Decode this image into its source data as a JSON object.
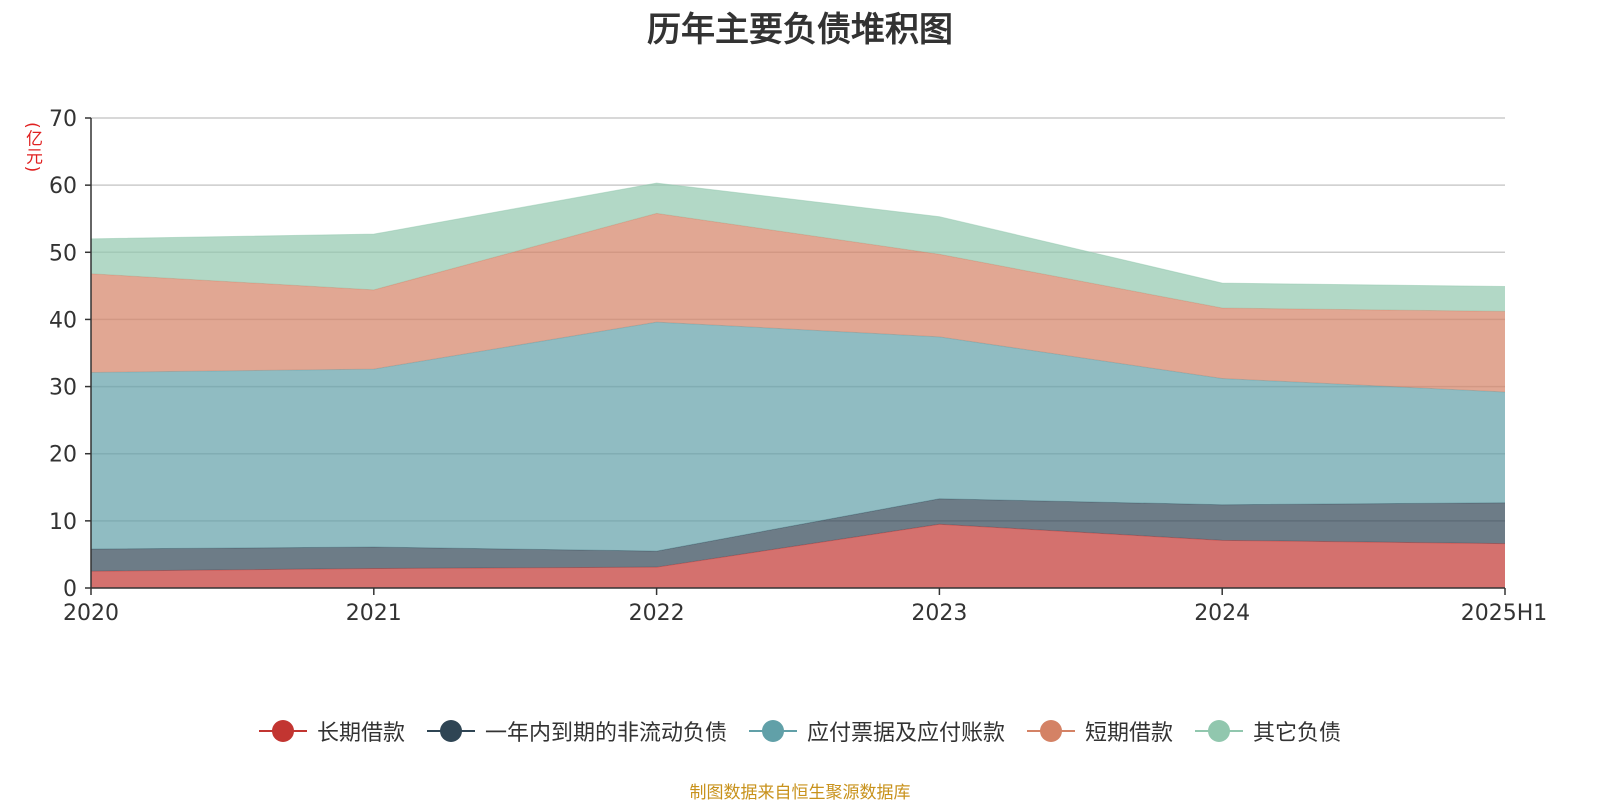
{
  "chart_data": {
    "type": "area",
    "title": "历年主要负债堆积图",
    "ylabel": "(亿元)",
    "ylim": [
      0,
      70
    ],
    "y_ticks": [
      0,
      10,
      20,
      30,
      40,
      50,
      60,
      70
    ],
    "stacked": true,
    "grid": true,
    "legend_position": "bottom",
    "categories": [
      "2020",
      "2021",
      "2022",
      "2023",
      "2024",
      "2025H1"
    ],
    "series": [
      {
        "name": "长期借款",
        "color": "#c23531",
        "values": [
          2.5,
          2.9,
          3.1,
          9.5,
          7.1,
          6.6
        ]
      },
      {
        "name": "一年内到期的非流动负债",
        "color": "#2f4554",
        "values": [
          3.3,
          3.2,
          2.4,
          3.8,
          5.3,
          6.1
        ]
      },
      {
        "name": "应付票据及应付账款",
        "color": "#61a0a8",
        "values": [
          26.3,
          26.5,
          34.1,
          24.1,
          18.8,
          16.5
        ]
      },
      {
        "name": "短期借款",
        "color": "#d48265",
        "values": [
          14.7,
          11.8,
          16.2,
          12.3,
          10.5,
          12.0
        ]
      },
      {
        "name": "其它负债",
        "color": "#91c7ae",
        "values": [
          5.2,
          8.3,
          4.5,
          5.6,
          3.7,
          3.7
        ]
      }
    ]
  },
  "footer": {
    "source": "制图数据来自恒生聚源数据库"
  }
}
